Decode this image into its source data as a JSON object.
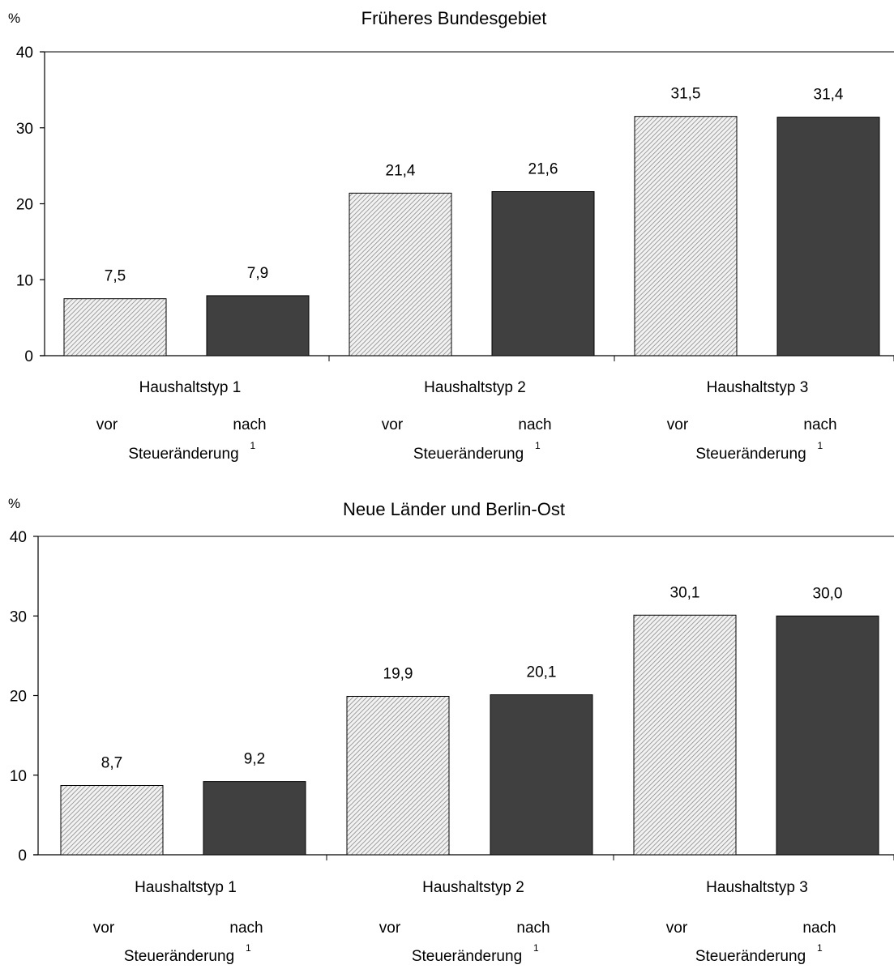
{
  "chart_data": [
    {
      "type": "bar",
      "title": "Früheres Bundesgebiet",
      "ylabel": "%",
      "ylim": [
        0,
        40
      ],
      "yticks": [
        "0",
        "10",
        "20",
        "30",
        "40"
      ],
      "categories": [
        "Haushaltstyp 1",
        "Haushaltstyp 2",
        "Haushaltstyp 3"
      ],
      "sublabels": {
        "before": "vor",
        "after": "nach",
        "caption": "Steueränderung",
        "footnote": "1"
      },
      "series": [
        {
          "name": "vor Steueränderung",
          "values": [
            7.5,
            21.4,
            31.5
          ],
          "labels": [
            "7,5",
            "21,4",
            "31,5"
          ],
          "color": "#d4d4d4",
          "pattern": "hatched"
        },
        {
          "name": "nach Steueränderung",
          "values": [
            7.9,
            21.6,
            31.4
          ],
          "labels": [
            "7,9",
            "21,6",
            "31,4"
          ],
          "color": "#404040"
        }
      ]
    },
    {
      "type": "bar",
      "title": "Neue Länder und Berlin-Ost",
      "ylabel": "%",
      "ylim": [
        0,
        40
      ],
      "yticks": [
        "0",
        "10",
        "20",
        "30",
        "40"
      ],
      "categories": [
        "Haushaltstyp 1",
        "Haushaltstyp 2",
        "Haushaltstyp 3"
      ],
      "sublabels": {
        "before": "vor",
        "after": "nach",
        "caption": "Steueränderung",
        "footnote": "1"
      },
      "series": [
        {
          "name": "vor Steueränderung",
          "values": [
            8.7,
            19.9,
            30.1
          ],
          "labels": [
            "8,7",
            "19,9",
            "30,1"
          ],
          "color": "#d4d4d4",
          "pattern": "hatched"
        },
        {
          "name": "nach Steueränderung",
          "values": [
            9.2,
            20.1,
            30.0
          ],
          "labels": [
            "9,2",
            "20,1",
            "30,0"
          ],
          "color": "#404040"
        }
      ]
    }
  ]
}
